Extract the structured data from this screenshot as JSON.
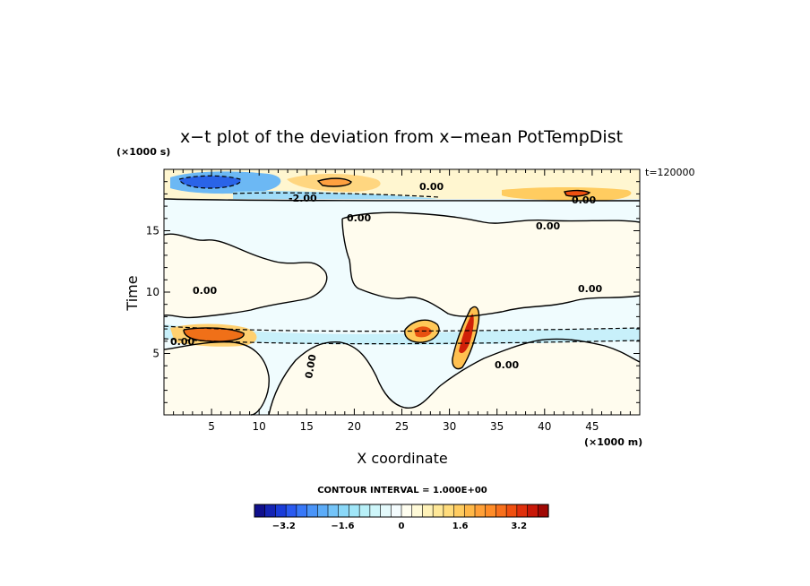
{
  "chart_data": {
    "type": "heatmap",
    "title": "x−t plot of the deviation from x−mean PotTempDist",
    "xlabel": "X coordinate",
    "ylabel": "Time",
    "x_unit": "(×1000 m)",
    "y_unit": "(×1000 s)",
    "time_label": "t=120000",
    "contour_interval_label": "CONTOUR INTERVAL = 1.000E+00",
    "xlim": [
      0,
      50
    ],
    "ylim": [
      0,
      20
    ],
    "x_ticks": [
      5,
      10,
      15,
      20,
      25,
      30,
      35,
      40,
      45
    ],
    "y_ticks": [
      5,
      10,
      15
    ],
    "contour_labels": [
      "0.00",
      "0.00",
      "0.00",
      "0.00",
      "0.00",
      "0.00",
      "0.00",
      "0.00",
      "-2.00",
      "0.00"
    ],
    "colorbar": {
      "ticks": [
        "−3.2",
        "−1.6",
        "0",
        "1.6",
        "3.2"
      ],
      "tick_values": [
        -3.2,
        -1.6,
        0,
        1.6,
        3.2
      ],
      "range": [
        -4.0,
        4.0
      ],
      "colors": [
        "#10108c",
        "#1424b4",
        "#1a3cd8",
        "#2a5af0",
        "#3878f8",
        "#4a94f8",
        "#5cacf8",
        "#74c4f8",
        "#8ad8f8",
        "#a0e6f8",
        "#b8f0f8",
        "#cef6fa",
        "#e4fafc",
        "#f4fcfe",
        "#fffef0",
        "#fffad8",
        "#fff2b8",
        "#ffe898",
        "#ffdc7c",
        "#ffcc60",
        "#ffb848",
        "#ffa038",
        "#ff8c28",
        "#f8701c",
        "#f05010",
        "#e0300c",
        "#c81808",
        "#a00804"
      ]
    }
  }
}
